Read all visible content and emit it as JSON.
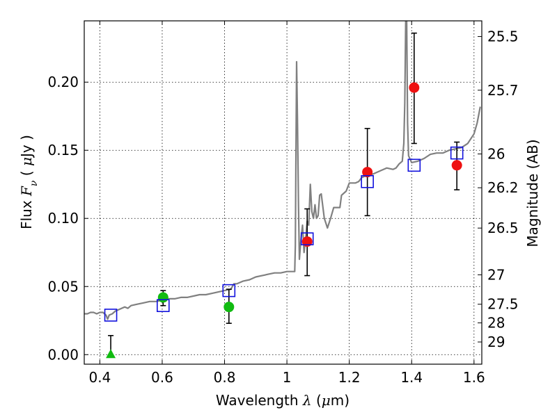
{
  "chart_data": {
    "type": "scatter",
    "xlabel_parts": [
      "Wavelength  ",
      "λ",
      " (",
      "μ",
      "m)"
    ],
    "ylabel_parts": [
      "Flux  ",
      "F",
      "ν",
      "  ( ",
      "μ",
      "Jy )"
    ],
    "y2label": "Magnitude (AB)",
    "xlim": [
      0.35,
      1.625
    ],
    "ylim": [
      -0.007,
      0.245
    ],
    "xticks": [
      0.4,
      0.6,
      0.8,
      1.0,
      1.2,
      1.4,
      1.6
    ],
    "xtick_labels": [
      "0.4",
      "0.6",
      "0.8",
      "1",
      "1.2",
      "1.4",
      "1.6"
    ],
    "yticks": [
      0.0,
      0.05,
      0.1,
      0.15,
      0.2
    ],
    "ytick_labels": [
      "0.00",
      "0.05",
      "0.10",
      "0.15",
      "0.20"
    ],
    "y2ticks": [
      {
        "label": "25.5",
        "flux": 0.2335
      },
      {
        "label": "25.7",
        "flux": 0.1941
      },
      {
        "label": "26",
        "flux": 0.1473
      },
      {
        "label": "26.2",
        "flux": 0.1225
      },
      {
        "label": "26.5",
        "flux": 0.0929
      },
      {
        "label": "27",
        "flux": 0.0586
      },
      {
        "label": "27.5",
        "flux": 0.037
      },
      {
        "label": "28",
        "flux": 0.0233
      },
      {
        "label": "29",
        "flux": 0.0093
      }
    ],
    "grid": true,
    "colors": {
      "model": "#808080",
      "measured_red": "#ee1111",
      "measured_green": "#11bb11",
      "model_photometry": "#1111dd",
      "error": "#000000"
    },
    "series": [
      {
        "kind": "model_spectrum",
        "points": [
          [
            0.35,
            0.03
          ],
          [
            0.36,
            0.03
          ],
          [
            0.37,
            0.031
          ],
          [
            0.38,
            0.031
          ],
          [
            0.39,
            0.03
          ],
          [
            0.4,
            0.031
          ],
          [
            0.41,
            0.031
          ],
          [
            0.42,
            0.029
          ],
          [
            0.425,
            0.026
          ],
          [
            0.43,
            0.029
          ],
          [
            0.44,
            0.03
          ],
          [
            0.45,
            0.032
          ],
          [
            0.46,
            0.033
          ],
          [
            0.47,
            0.034
          ],
          [
            0.48,
            0.035
          ],
          [
            0.49,
            0.034
          ],
          [
            0.5,
            0.036
          ],
          [
            0.52,
            0.037
          ],
          [
            0.54,
            0.038
          ],
          [
            0.56,
            0.039
          ],
          [
            0.58,
            0.039
          ],
          [
            0.6,
            0.04
          ],
          [
            0.62,
            0.041
          ],
          [
            0.64,
            0.041
          ],
          [
            0.66,
            0.042
          ],
          [
            0.68,
            0.042
          ],
          [
            0.7,
            0.043
          ],
          [
            0.72,
            0.044
          ],
          [
            0.74,
            0.044
          ],
          [
            0.76,
            0.045
          ],
          [
            0.78,
            0.046
          ],
          [
            0.8,
            0.047
          ],
          [
            0.82,
            0.048
          ],
          [
            0.83,
            0.052
          ],
          [
            0.84,
            0.052
          ],
          [
            0.86,
            0.054
          ],
          [
            0.88,
            0.055
          ],
          [
            0.9,
            0.057
          ],
          [
            0.92,
            0.058
          ],
          [
            0.94,
            0.059
          ],
          [
            0.96,
            0.06
          ],
          [
            0.98,
            0.06
          ],
          [
            1.0,
            0.061
          ],
          [
            1.02,
            0.061
          ],
          [
            1.025,
            0.061
          ],
          [
            1.027,
            0.08
          ],
          [
            1.029,
            0.15
          ],
          [
            1.031,
            0.215
          ],
          [
            1.034,
            0.17
          ],
          [
            1.037,
            0.11
          ],
          [
            1.04,
            0.07
          ],
          [
            1.045,
            0.085
          ],
          [
            1.05,
            0.095
          ],
          [
            1.055,
            0.075
          ],
          [
            1.06,
            0.085
          ],
          [
            1.065,
            0.098
          ],
          [
            1.07,
            0.095
          ],
          [
            1.075,
            0.125
          ],
          [
            1.08,
            0.105
          ],
          [
            1.085,
            0.1
          ],
          [
            1.09,
            0.11
          ],
          [
            1.095,
            0.1
          ],
          [
            1.1,
            0.102
          ],
          [
            1.105,
            0.117
          ],
          [
            1.11,
            0.118
          ],
          [
            1.12,
            0.1
          ],
          [
            1.13,
            0.093
          ],
          [
            1.14,
            0.1
          ],
          [
            1.15,
            0.108
          ],
          [
            1.16,
            0.108
          ],
          [
            1.17,
            0.108
          ],
          [
            1.175,
            0.117
          ],
          [
            1.18,
            0.118
          ],
          [
            1.19,
            0.12
          ],
          [
            1.2,
            0.126
          ],
          [
            1.22,
            0.126
          ],
          [
            1.23,
            0.127
          ],
          [
            1.24,
            0.13
          ],
          [
            1.25,
            0.131
          ],
          [
            1.26,
            0.132
          ],
          [
            1.27,
            0.132
          ],
          [
            1.28,
            0.133
          ],
          [
            1.3,
            0.135
          ],
          [
            1.32,
            0.137
          ],
          [
            1.34,
            0.136
          ],
          [
            1.35,
            0.137
          ],
          [
            1.36,
            0.14
          ],
          [
            1.37,
            0.142
          ],
          [
            1.375,
            0.155
          ],
          [
            1.378,
            0.185
          ],
          [
            1.381,
            0.245
          ],
          [
            1.384,
            0.245
          ],
          [
            1.387,
            0.17
          ],
          [
            1.39,
            0.146
          ],
          [
            1.4,
            0.141
          ],
          [
            1.42,
            0.142
          ],
          [
            1.44,
            0.144
          ],
          [
            1.46,
            0.147
          ],
          [
            1.48,
            0.148
          ],
          [
            1.5,
            0.148
          ],
          [
            1.52,
            0.15
          ],
          [
            1.54,
            0.151
          ],
          [
            1.56,
            0.152
          ],
          [
            1.58,
            0.155
          ],
          [
            1.6,
            0.162
          ],
          [
            1.61,
            0.17
          ],
          [
            1.62,
            0.182
          ]
        ]
      },
      {
        "kind": "measured_flux",
        "points": [
          {
            "x": 0.435,
            "y": 0.0005,
            "err_low": 0.0,
            "err_high": 0.014,
            "marker": "triangle",
            "color": "green"
          },
          {
            "x": 0.603,
            "y": 0.042,
            "err_low": 0.036,
            "err_high": 0.047,
            "marker": "circle",
            "color": "green"
          },
          {
            "x": 0.814,
            "y": 0.035,
            "err_low": 0.023,
            "err_high": 0.048,
            "marker": "circle",
            "color": "green"
          },
          {
            "x": 1.065,
            "y": 0.083,
            "err_low": 0.058,
            "err_high": 0.107,
            "marker": "circle",
            "color": "red"
          },
          {
            "x": 1.258,
            "y": 0.134,
            "err_low": 0.102,
            "err_high": 0.166,
            "marker": "circle",
            "color": "red"
          },
          {
            "x": 1.408,
            "y": 0.196,
            "err_low": 0.155,
            "err_high": 0.236,
            "marker": "circle",
            "color": "red"
          },
          {
            "x": 1.545,
            "y": 0.139,
            "err_low": 0.121,
            "err_high": 0.156,
            "marker": "circle",
            "color": "red"
          }
        ]
      },
      {
        "kind": "model_photometry",
        "points": [
          {
            "x": 0.435,
            "y": 0.029
          },
          {
            "x": 0.603,
            "y": 0.036
          },
          {
            "x": 0.814,
            "y": 0.047
          },
          {
            "x": 1.065,
            "y": 0.085
          },
          {
            "x": 1.258,
            "y": 0.127
          },
          {
            "x": 1.408,
            "y": 0.139
          },
          {
            "x": 1.545,
            "y": 0.148
          }
        ]
      }
    ]
  }
}
